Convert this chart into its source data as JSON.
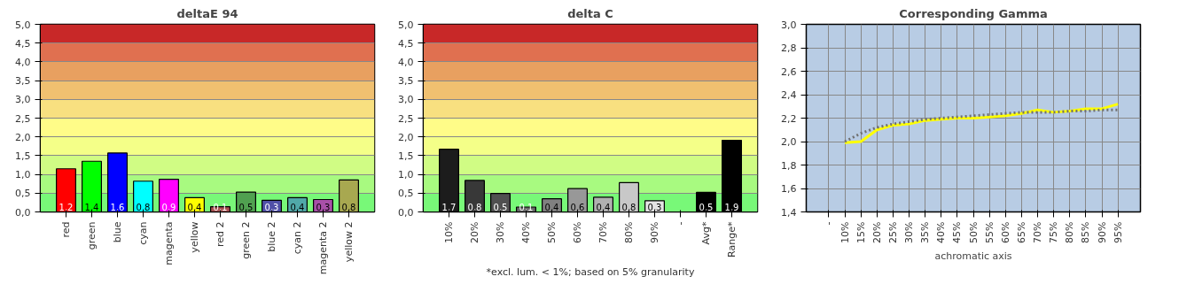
{
  "chart_data": [
    {
      "type": "bar",
      "title": "deltaE 94",
      "categories": [
        "red",
        "green",
        "blue",
        "cyan",
        "magenta",
        "yellow",
        "red 2",
        "green 2",
        "blue 2",
        "cyan 2",
        "magenta 2",
        "yellow 2"
      ],
      "values": [
        1.15,
        1.35,
        1.57,
        0.82,
        0.87,
        0.38,
        0.14,
        0.53,
        0.31,
        0.38,
        0.33,
        0.85
      ],
      "colors": [
        "#ff0000",
        "#00ff00",
        "#0000ff",
        "#00ffff",
        "#ff00ff",
        "#ffff00",
        "#a85050",
        "#50a050",
        "#5050a8",
        "#50a8a8",
        "#a850a8",
        "#a8a850"
      ],
      "value_labels": [
        "1,2",
        "1,4",
        "1,6",
        "0,8",
        "0,9",
        "0,4",
        "0,1",
        "0,5",
        "0,3",
        "0,4",
        "0,3",
        "0,8"
      ],
      "ylim": [
        0,
        5
      ],
      "yticks": [
        {
          "value": 0,
          "label": "0,0"
        },
        {
          "value": 0.5,
          "label": "0,5"
        },
        {
          "value": 1,
          "label": "1,0"
        },
        {
          "value": 1.5,
          "label": "1,5"
        },
        {
          "value": 2,
          "label": "2,0"
        },
        {
          "value": 2.5,
          "label": "2,5"
        },
        {
          "value": 3,
          "label": "3,0"
        },
        {
          "value": 3.5,
          "label": "3,5"
        },
        {
          "value": 4,
          "label": "4,0"
        },
        {
          "value": 4.5,
          "label": "4,5"
        },
        {
          "value": 5,
          "label": "5,0"
        }
      ],
      "grid": "y",
      "bands": [
        {
          "axis": "y",
          "from": 0,
          "to": 0.5,
          "color": "#78f878"
        },
        {
          "axis": "y",
          "from": 0.5,
          "to": 1,
          "color": "#a8fa80"
        },
        {
          "axis": "y",
          "from": 1,
          "to": 1.5,
          "color": "#d0fc84"
        },
        {
          "axis": "y",
          "from": 1.5,
          "to": 2,
          "color": "#f4ff88"
        },
        {
          "axis": "y",
          "from": 2,
          "to": 2.5,
          "color": "#fffc88"
        },
        {
          "axis": "y",
          "from": 2.5,
          "to": 3,
          "color": "#f8e080"
        },
        {
          "axis": "y",
          "from": 3,
          "to": 3.5,
          "color": "#f0c070"
        },
        {
          "axis": "y",
          "from": 3.5,
          "to": 4,
          "color": "#e8a060"
        },
        {
          "axis": "y",
          "from": 4,
          "to": 4.5,
          "color": "#e07050"
        },
        {
          "axis": "y",
          "from": 4.5,
          "to": 5,
          "color": "#c82828"
        }
      ]
    },
    {
      "type": "bar",
      "title": "delta C",
      "categories": [
        "10%",
        "20%",
        "30%",
        "40%",
        "50%",
        "60%",
        "70%",
        "80%",
        "90%",
        "-",
        "Avg*",
        "Range*"
      ],
      "values": [
        1.67,
        0.84,
        0.49,
        0.13,
        0.35,
        0.62,
        0.39,
        0.78,
        0.3,
        null,
        0.52,
        1.91
      ],
      "colors": [
        "#1c1c1c",
        "#383838",
        "#505050",
        "#686868",
        "#808080",
        "#989898",
        "#b0b0b0",
        "#c8c8c8",
        "#e4e4e4",
        "#000000",
        "#000000",
        "#000000"
      ],
      "value_labels": [
        "1,7",
        "0,8",
        "0,5",
        "0,1",
        "0,4",
        "0,6",
        "0,4",
        "0,8",
        "0,3",
        null,
        "0,5",
        "1,9"
      ],
      "ylim": [
        0,
        5
      ],
      "yticks": [
        {
          "value": 0,
          "label": "0,0"
        },
        {
          "value": 0.5,
          "label": "0,5"
        },
        {
          "value": 1,
          "label": "1,0"
        },
        {
          "value": 1.5,
          "label": "1,5"
        },
        {
          "value": 2,
          "label": "2,0"
        },
        {
          "value": 2.5,
          "label": "2,5"
        },
        {
          "value": 3,
          "label": "3,0"
        },
        {
          "value": 3.5,
          "label": "3,5"
        },
        {
          "value": 4,
          "label": "4,0"
        },
        {
          "value": 4.5,
          "label": "4,5"
        },
        {
          "value": 5,
          "label": "5,0"
        }
      ],
      "grid": "y",
      "annotations": [
        "*excl. lum. < 1%; based on 5% granularity"
      ],
      "bands": [
        {
          "axis": "y",
          "from": 0,
          "to": 0.5,
          "color": "#78f878"
        },
        {
          "axis": "y",
          "from": 0.5,
          "to": 1,
          "color": "#a8fa80"
        },
        {
          "axis": "y",
          "from": 1,
          "to": 1.5,
          "color": "#d0fc84"
        },
        {
          "axis": "y",
          "from": 1.5,
          "to": 2,
          "color": "#f4ff88"
        },
        {
          "axis": "y",
          "from": 2,
          "to": 2.5,
          "color": "#fffc88"
        },
        {
          "axis": "y",
          "from": 2.5,
          "to": 3,
          "color": "#f8e080"
        },
        {
          "axis": "y",
          "from": 3,
          "to": 3.5,
          "color": "#f0c070"
        },
        {
          "axis": "y",
          "from": 3.5,
          "to": 4,
          "color": "#e8a060"
        },
        {
          "axis": "y",
          "from": 4,
          "to": 4.5,
          "color": "#e07050"
        },
        {
          "axis": "y",
          "from": 4.5,
          "to": 5,
          "color": "#c82828"
        }
      ]
    },
    {
      "type": "line",
      "title": "Corresponding Gamma",
      "xlabel": "achromatic axis",
      "categories": [
        "-",
        "10%",
        "15%",
        "20%",
        "25%",
        "30%",
        "35%",
        "40%",
        "45%",
        "50%",
        "55%",
        "60%",
        "65%",
        "70%",
        "75%",
        "80%",
        "85%",
        "90%",
        "95%"
      ],
      "series": [
        {
          "color": "#ffff00",
          "line_style": "solid",
          "values": [
            null,
            1.99,
            2.0,
            2.1,
            2.14,
            2.15,
            2.18,
            2.19,
            2.2,
            2.2,
            2.21,
            2.22,
            2.24,
            2.27,
            2.25,
            2.26,
            2.28,
            2.28,
            2.32
          ]
        },
        {
          "color": "#707070",
          "line_style": "dotted",
          "values": [
            null,
            2.0,
            2.07,
            2.12,
            2.15,
            2.17,
            2.19,
            2.2,
            2.21,
            2.22,
            2.23,
            2.24,
            2.25,
            2.25,
            2.25,
            2.26,
            2.26,
            2.27,
            2.27
          ]
        }
      ],
      "ylim": [
        1.4,
        3.0
      ],
      "yticks": [
        {
          "value": 1.4,
          "label": "1,4"
        },
        {
          "value": 1.6,
          "label": "1,6"
        },
        {
          "value": 1.8,
          "label": "1,8"
        },
        {
          "value": 2.0,
          "label": "2,0"
        },
        {
          "value": 2.2,
          "label": "2,2"
        },
        {
          "value": 2.4,
          "label": "2,4"
        },
        {
          "value": 2.6,
          "label": "2,6"
        },
        {
          "value": 2.8,
          "label": "2,8"
        },
        {
          "value": 3.0,
          "label": "3,0"
        }
      ],
      "grid": true,
      "marker": "none"
    }
  ]
}
